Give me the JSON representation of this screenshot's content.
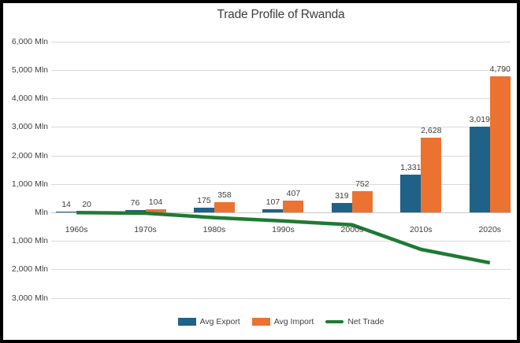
{
  "chart": {
    "title": "Trade Profile of Rwanda"
  },
  "legend": {
    "items": [
      "Avg Export",
      "Avg Import",
      "Net Trade"
    ]
  },
  "chart_data": {
    "type": "bar",
    "title": "Trade Profile of Rwanda",
    "categories": [
      "1960s",
      "1970s",
      "1980s",
      "1990s",
      "2000s",
      "2010s",
      "2020s"
    ],
    "series": [
      {
        "name": "Avg Export",
        "type": "bar",
        "color": "#206287",
        "values": [
          14,
          76,
          175,
          107,
          319,
          1331,
          3019
        ],
        "value_labels": [
          "14",
          "76",
          "175",
          "107",
          "319",
          "1,331",
          "3,019"
        ]
      },
      {
        "name": "Avg Import",
        "type": "bar",
        "color": "#EC7231",
        "values": [
          20,
          104,
          358,
          407,
          752,
          2628,
          4790
        ],
        "value_labels": [
          "20",
          "104",
          "358",
          "407",
          "752",
          "2,628",
          "4,790"
        ]
      },
      {
        "name": "Net Trade",
        "type": "line",
        "color": "#1F7A33",
        "values": [
          -6,
          -28,
          -183,
          -300,
          -433,
          -1297,
          -1771
        ]
      }
    ],
    "y_axis": {
      "unit_suffix": "Mln",
      "ticks": [
        {
          "value": 6000,
          "label": "6,000 Mln"
        },
        {
          "value": 5000,
          "label": "5,000 Mln"
        },
        {
          "value": 4000,
          "label": "4,000 Mln"
        },
        {
          "value": 3000,
          "label": "3,000 Mln"
        },
        {
          "value": 2000,
          "label": "2,000 Mln"
        },
        {
          "value": 1000,
          "label": "1,000 Mln"
        },
        {
          "value": 0,
          "label": "Mln"
        },
        {
          "value": -1000,
          "label": "1,000 Mln"
        },
        {
          "value": -2000,
          "label": "2,000 Mln"
        },
        {
          "value": -3000,
          "label": "3,000 Mln"
        }
      ],
      "range": [
        -3000,
        6000
      ]
    },
    "grid": true,
    "legend_position": "bottom",
    "colors": {
      "text": "#404040",
      "title_text": "#3D3D3D",
      "gridline": "#D9D9D9",
      "background": "#FFFFFF",
      "border": "#000000"
    }
  }
}
